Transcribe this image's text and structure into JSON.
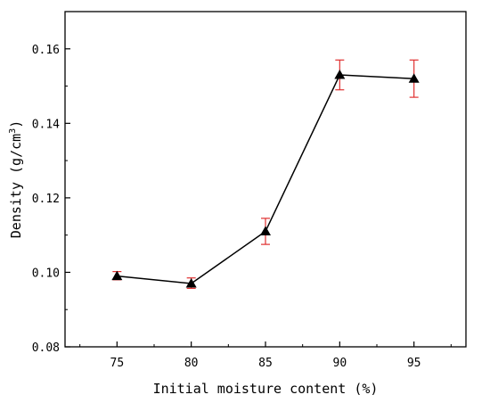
{
  "chart_data": {
    "type": "line",
    "title": "",
    "xlabel": "Initial moisture content (%)",
    "ylabel": "Density (g/cm",
    "ylabel_sup": "3",
    "ylabel_end": ")",
    "x": [
      75,
      80,
      85,
      90,
      95
    ],
    "x_tick_labels": [
      "75",
      "80",
      "85",
      "90",
      "95"
    ],
    "xlim": [
      71.5,
      98.5
    ],
    "ylim": [
      0.08,
      0.17
    ],
    "y_ticks": [
      0.08,
      0.1,
      0.12,
      0.14,
      0.16
    ],
    "y_tick_labels": [
      "0.08",
      "0.10",
      "0.12",
      "0.14",
      "0.16"
    ],
    "series": [
      {
        "values": [
          0.099,
          0.097,
          0.111,
          0.153,
          0.152
        ],
        "error_low": [
          0.098,
          0.0957,
          0.1075,
          0.149,
          0.147
        ],
        "error_high": [
          0.1002,
          0.0985,
          0.1145,
          0.157,
          0.157
        ],
        "marker": "triangle",
        "line_color": "#000000",
        "marker_color": "#000000",
        "error_color": "#e03030"
      }
    ],
    "grid": false,
    "legend": "none"
  }
}
